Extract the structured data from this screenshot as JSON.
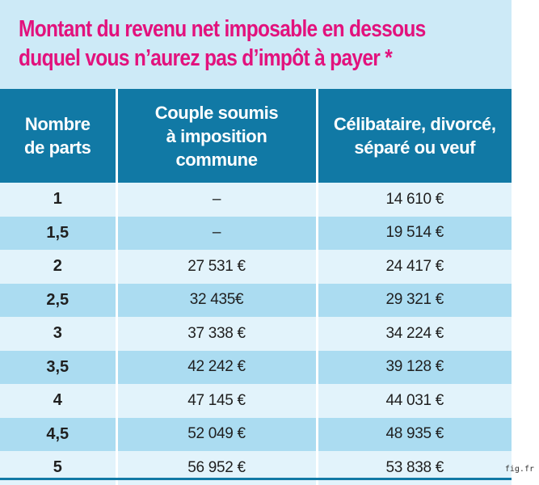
{
  "title": {
    "line1": "Montant du revenu net imposable en dessous",
    "line2": "duquel vous n’aurez pas d’impôt à payer *"
  },
  "table": {
    "headers": {
      "parts": [
        "Nombre",
        "de parts"
      ],
      "couple": [
        "Couple soumis",
        "à imposition",
        "commune"
      ],
      "single": [
        "Célibataire, divorcé,",
        "séparé ou veuf"
      ]
    },
    "rows": [
      {
        "parts": "1",
        "couple": "–",
        "single": "14 610 €"
      },
      {
        "parts": "1,5",
        "couple": "–",
        "single": "19 514 €"
      },
      {
        "parts": "2",
        "couple": "27 531 €",
        "single": "24 417 €"
      },
      {
        "parts": "2,5",
        "couple": "32 435€",
        "single": "29 321 €"
      },
      {
        "parts": "3",
        "couple": "37 338 €",
        "single": "34 224 €"
      },
      {
        "parts": "3,5",
        "couple": "42 242 €",
        "single": "39 128 €"
      },
      {
        "parts": "4",
        "couple": "47 145 €",
        "single": "44 031 €"
      },
      {
        "parts": "4,5",
        "couple": "52 049 €",
        "single": "48 935 €"
      },
      {
        "parts": "5",
        "couple": "56 952 €",
        "single": "53 838 €"
      }
    ]
  },
  "credit": "fig.fr",
  "colors": {
    "title": "#e2127d",
    "header_bg": "#1179a5",
    "panel_bg": "#cdeaf7",
    "row_light": "#e2f3fb",
    "row_dark": "#abdcf1"
  }
}
